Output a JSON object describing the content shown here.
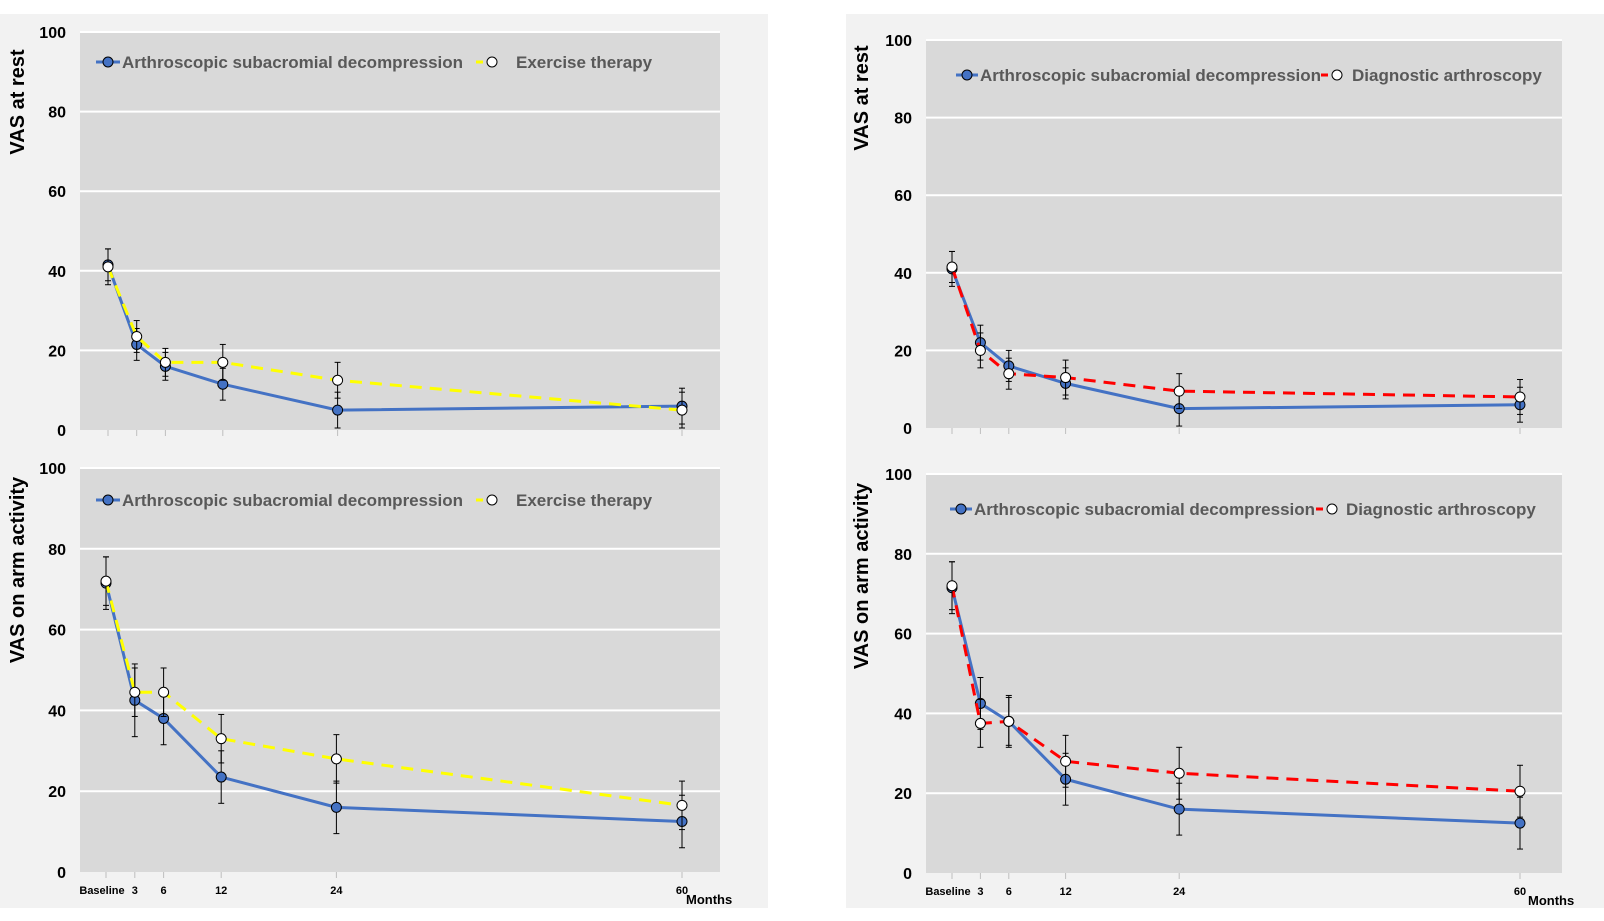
{
  "chart_data": [
    {
      "id": "tl",
      "type": "line",
      "ylabel": "VAS at rest",
      "ylim": [
        0,
        100
      ],
      "yticks": [
        0,
        20,
        40,
        60,
        80,
        100
      ],
      "grid": true,
      "legend_position": "top",
      "series": [
        {
          "name": "Arthroscopic subacromial decompression",
          "color": "#4472C4",
          "dash": false,
          "marker_fill": "#4472C4",
          "x": [
            0,
            3,
            6,
            12,
            24,
            60
          ],
          "y": [
            41.5,
            21.5,
            16.0,
            11.5,
            5.0,
            6.0
          ],
          "err": [
            4.0,
            4.0,
            3.5,
            4.0,
            4.5,
            4.5
          ]
        },
        {
          "name": "Exercise therapy",
          "color": "#FFFF00",
          "dash": true,
          "marker_fill": "#FFFFFF",
          "x": [
            0,
            3,
            6,
            12,
            24,
            60
          ],
          "y": [
            41.0,
            23.5,
            17.0,
            17.0,
            12.5,
            5.0
          ],
          "err": [
            4.5,
            4.0,
            3.5,
            4.5,
            4.5,
            4.5
          ]
        }
      ]
    },
    {
      "id": "bl",
      "type": "line",
      "ylabel": "VAS on arm activity",
      "ylim": [
        0,
        100
      ],
      "yticks": [
        0,
        20,
        40,
        60,
        80,
        100
      ],
      "grid": true,
      "legend_position": "top",
      "xticks": [
        "Baseline",
        "3",
        "6",
        "12",
        "24",
        "60"
      ],
      "xunit": "Months",
      "series": [
        {
          "name": "Arthroscopic subacromial decompression",
          "color": "#4472C4",
          "dash": false,
          "marker_fill": "#4472C4",
          "x": [
            0,
            3,
            6,
            12,
            24,
            60
          ],
          "y": [
            71.5,
            42.5,
            38.0,
            23.5,
            16.0,
            12.5
          ],
          "err": [
            6.5,
            9.0,
            6.5,
            6.5,
            6.5,
            6.5
          ]
        },
        {
          "name": "Exercise therapy",
          "color": "#FFFF00",
          "dash": true,
          "marker_fill": "#FFFFFF",
          "x": [
            0,
            3,
            6,
            12,
            24,
            60
          ],
          "y": [
            72.0,
            44.5,
            44.5,
            33.0,
            28.0,
            16.5
          ],
          "err": [
            6.0,
            6.0,
            6.0,
            6.0,
            6.0,
            6.0
          ]
        }
      ]
    },
    {
      "id": "tr",
      "type": "line",
      "ylabel": "VAS at rest",
      "ylim": [
        0,
        100
      ],
      "yticks": [
        0,
        20,
        40,
        60,
        80,
        100
      ],
      "grid": true,
      "legend_position": "top",
      "series": [
        {
          "name": "Arthroscopic subacromial decompression",
          "color": "#4472C4",
          "dash": false,
          "marker_fill": "#4472C4",
          "x": [
            0,
            3,
            6,
            12,
            24,
            60
          ],
          "y": [
            41.0,
            22.0,
            16.0,
            11.5,
            5.0,
            6.0
          ],
          "err": [
            4.5,
            4.5,
            4.0,
            4.0,
            4.5,
            4.5
          ]
        },
        {
          "name": "Diagnostic arthroscopy",
          "color": "#FF0000",
          "dash": true,
          "marker_fill": "#FFFFFF",
          "x": [
            0,
            3,
            6,
            12,
            24,
            60
          ],
          "y": [
            41.5,
            20.0,
            14.0,
            13.0,
            9.5,
            8.0
          ],
          "err": [
            4.0,
            4.5,
            4.0,
            4.5,
            4.5,
            4.5
          ]
        }
      ]
    },
    {
      "id": "br",
      "type": "line",
      "ylabel": "VAS on arm activity",
      "ylim": [
        0,
        100
      ],
      "yticks": [
        0,
        20,
        40,
        60,
        80,
        100
      ],
      "grid": true,
      "legend_position": "top",
      "xticks": [
        "Baseline",
        "3",
        "6",
        "12",
        "24",
        "60"
      ],
      "xunit": "Months",
      "series": [
        {
          "name": "Arthroscopic subacromial decompression",
          "color": "#4472C4",
          "dash": false,
          "marker_fill": "#4472C4",
          "x": [
            0,
            3,
            6,
            12,
            24,
            60
          ],
          "y": [
            71.5,
            42.5,
            38.0,
            23.5,
            16.0,
            12.5
          ],
          "err": [
            6.5,
            6.5,
            6.5,
            6.5,
            6.5,
            6.5
          ]
        },
        {
          "name": "Diagnostic arthroscopy",
          "color": "#FF0000",
          "dash": true,
          "marker_fill": "#FFFFFF",
          "x": [
            0,
            3,
            6,
            12,
            24,
            60
          ],
          "y": [
            72.0,
            37.5,
            38.0,
            28.0,
            25.0,
            20.5
          ],
          "err": [
            6.0,
            6.0,
            6.0,
            6.5,
            6.5,
            6.5
          ]
        }
      ]
    }
  ]
}
